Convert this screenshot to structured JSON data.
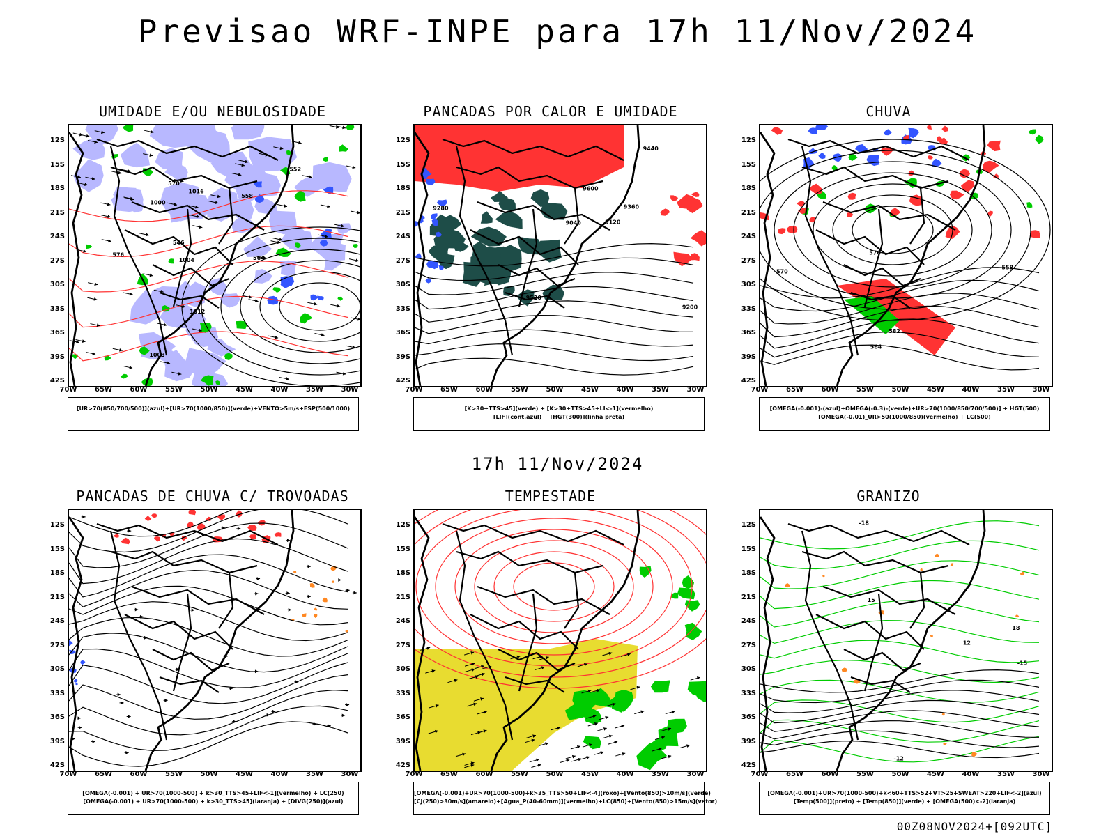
{
  "title": "Previsao WRF-INPE  para 17h 11/Nov/2024",
  "middle_title": "17h 11/Nov/2024",
  "footer": "00Z08NOV2024+[092UTC]",
  "lat_labels": [
    "12S",
    "15S",
    "18S",
    "21S",
    "24S",
    "27S",
    "30S",
    "33S",
    "36S",
    "39S",
    "42S"
  ],
  "lon_labels": [
    "70W",
    "65W",
    "60W",
    "55W",
    "50W",
    "45W",
    "40W",
    "35W",
    "30W"
  ],
  "panels": {
    "umidade": {
      "title": "UMIDADE E/OU NEBULOSIDADE",
      "legend": [
        "[UR>70(850/700/500)](azul)+[UR>70(1000/850)](verde)+VENTO>5m/s+ESP(500/1000)"
      ],
      "contour_labels": [
        "1004",
        "1000",
        "1008",
        "1012",
        "1016",
        "570",
        "576",
        "564",
        "558",
        "552",
        "546"
      ]
    },
    "pancadas_calor": {
      "title": "PANCADAS POR CALOR E UMIDADE",
      "legend": [
        "[K>30+TTS>45](verde) + [K>30+TTS>45+LI<-1](vermelho)",
        "[LIF](cont.azul) + [HGT(300)](linha preta)"
      ],
      "contour_labels": [
        "9600",
        "9520",
        "9440",
        "9360",
        "9280",
        "9200",
        "9120",
        "9040"
      ]
    },
    "chuva": {
      "title": "CHUVA",
      "legend": [
        "[OMEGA(-0.001)-(azul)+OMEGA(-0.3)-(verde)+UR>70(1000/850/700/500)] + HGT(500)",
        "[OMEGA(-0.01)_UR>50(1000/850)(vermelho) + LC(500)"
      ],
      "contour_labels": [
        "582",
        "576",
        "570",
        "564",
        "558"
      ]
    },
    "trovoadas": {
      "title": "PANCADAS DE CHUVA C/ TROVOADAS",
      "legend": [
        "[OMEGA(-0.001) + UR>70(1000-500) + k>30_TTS>45+LIF<-1](vermelho) + LC(250)",
        "[OMEGA(-0.001) + UR>70(1000-500) + k>30_TTS>45](laranja) + [DIVG(250)](azul)"
      ]
    },
    "tempestade": {
      "title": "TEMPESTADE",
      "legend": [
        "[OMEGA(-0.001)+UR>70(1000-500)+k>35_TTS>50+LIF<-4](roxo)+[Vento(850)>10m/s](verde)",
        "[CJ(250)>30m/s](amarelo)+[Agua_P(40-60mm)](vermelho)+LC(850)+[Vento(850)>15m/s](vetor)"
      ]
    },
    "granizo": {
      "title": "GRANIZO",
      "legend": [
        "[OMEGA(-0.001)+UR>70(1000-500)+k<60+TTS>52+VT>25+SWEAT>220+LIF<-2](azul)",
        "[Temp(500)](preto) + [Temp(850)](verde) + [OMEGA(500)<-2](laranja)"
      ],
      "contour_labels": [
        "-12",
        "-15",
        "-18",
        "12",
        "15",
        "18"
      ]
    }
  },
  "colors": {
    "blue": "#3355ff",
    "lavender": "#b8b8ff",
    "green": "#00cc00",
    "red": "#ff3333",
    "darkgreen": "#1e4d48",
    "yellow": "#e8dc30",
    "orange": "#ff8822",
    "purple": "#cc44cc"
  }
}
